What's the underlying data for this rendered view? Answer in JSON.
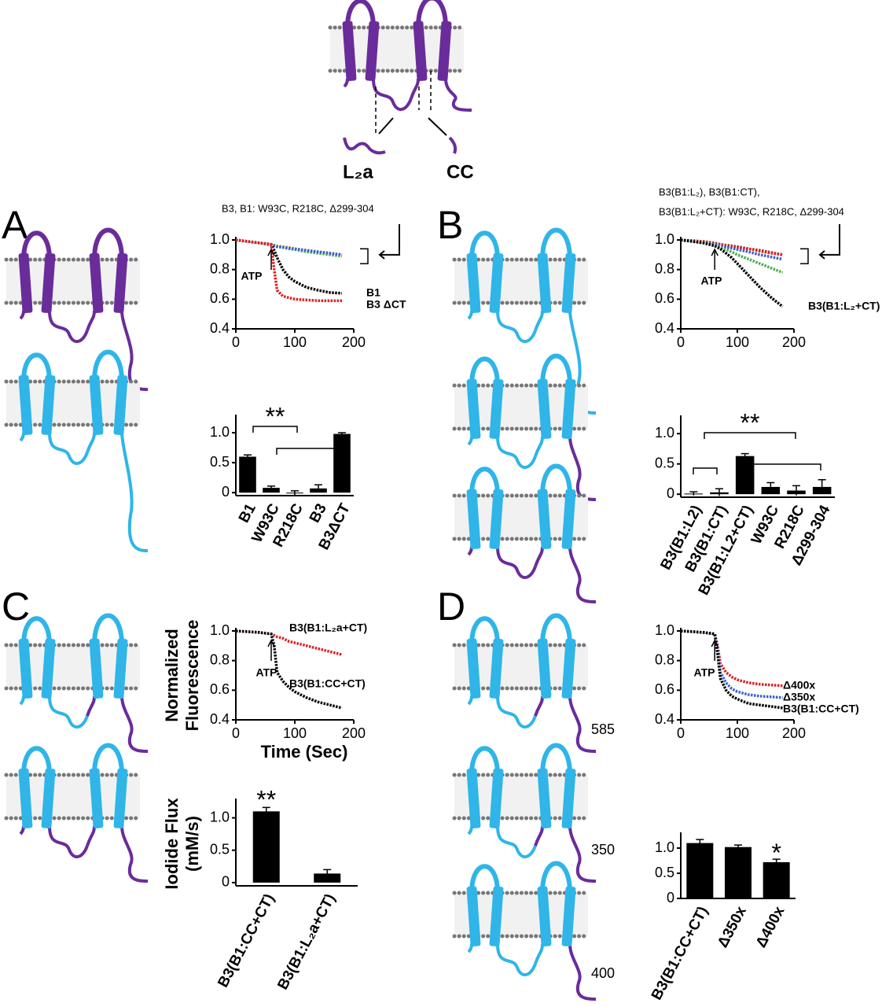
{
  "figure": {
    "panel_letters": [
      "A",
      "B",
      "C",
      "D"
    ],
    "top_labels": [
      "L₂a",
      "CC"
    ],
    "residue_labels": [
      "585",
      "350",
      "400"
    ]
  },
  "chart_data": [
    {
      "type": "line",
      "x": [
        0,
        20,
        40,
        60,
        65,
        70,
        80,
        90,
        100,
        120,
        140,
        160,
        180
      ],
      "series": [
        {
          "color": "#e8a33c",
          "values": [
            1,
            0.99,
            0.98,
            0.97,
            0.965,
            0.96,
            0.955,
            0.95,
            0.94,
            0.93,
            0.92,
            0.91,
            0.9
          ]
        },
        {
          "color": "#4caf50",
          "values": [
            1,
            0.99,
            0.98,
            0.97,
            0.962,
            0.955,
            0.95,
            0.94,
            0.935,
            0.92,
            0.91,
            0.9,
            0.89
          ]
        },
        {
          "color": "#3a5fcd",
          "values": [
            1,
            0.99,
            0.98,
            0.965,
            0.96,
            0.955,
            0.95,
            0.945,
            0.94,
            0.93,
            0.92,
            0.91,
            0.9
          ]
        },
        {
          "name": "B1",
          "color": "#000000",
          "values": [
            1,
            0.99,
            0.98,
            0.97,
            0.93,
            0.88,
            0.8,
            0.75,
            0.72,
            0.68,
            0.66,
            0.645,
            0.64
          ]
        },
        {
          "name": "B3 ΔCT",
          "color": "#e02020",
          "values": [
            1,
            0.99,
            0.98,
            0.97,
            0.8,
            0.66,
            0.62,
            0.61,
            0.6,
            0.595,
            0.59,
            0.59,
            0.59
          ]
        }
      ],
      "xlim": [
        0,
        200
      ],
      "ylim": [
        0.4,
        1.0
      ],
      "xticks": [
        0,
        100,
        200
      ],
      "yticks": [
        0.4,
        0.6,
        0.8,
        {
          "value": 1,
          "label": "1.0"
        }
      ],
      "annotations": [
        "B3, B1: W93C, R218C, Δ299-304",
        "ATP"
      ]
    },
    {
      "type": "bar",
      "categories": [
        "B1",
        "W93C",
        "R218C",
        "B3",
        "B3ΔCT"
      ],
      "values": [
        0.6,
        0.08,
        -0.01,
        0.07,
        0.98
      ],
      "errors": [
        0.03,
        0.03,
        0.04,
        0.06,
        0.02
      ],
      "color": "#000000",
      "ylim": [
        -0.05,
        1.25
      ],
      "yticks": [
        0,
        0.5,
        {
          "value": 1,
          "label": "1.0"
        }
      ],
      "annotations": [
        "**"
      ]
    },
    {
      "type": "line",
      "x": [
        0,
        20,
        40,
        60,
        65,
        70,
        80,
        90,
        100,
        120,
        140,
        160,
        180
      ],
      "series": [
        {
          "color": "#8b3a2a",
          "values": [
            1,
            0.995,
            0.99,
            0.98,
            0.975,
            0.97,
            0.965,
            0.96,
            0.955,
            0.94,
            0.93,
            0.915,
            0.9
          ]
        },
        {
          "color": "#e02020",
          "values": [
            1,
            0.995,
            0.985,
            0.975,
            0.97,
            0.965,
            0.96,
            0.955,
            0.95,
            0.94,
            0.925,
            0.91,
            0.9
          ]
        },
        {
          "color": "#3a5fcd",
          "values": [
            1,
            0.99,
            0.98,
            0.97,
            0.965,
            0.96,
            0.95,
            0.945,
            0.935,
            0.92,
            0.9,
            0.885,
            0.87
          ]
        },
        {
          "color": "#4caf50",
          "values": [
            1,
            0.99,
            0.98,
            0.96,
            0.955,
            0.95,
            0.935,
            0.92,
            0.9,
            0.87,
            0.84,
            0.81,
            0.78
          ]
        },
        {
          "name": "B3(B1:L₂+CT)",
          "color": "#000000",
          "values": [
            1,
            0.99,
            0.98,
            0.96,
            0.95,
            0.94,
            0.91,
            0.88,
            0.84,
            0.76,
            0.68,
            0.61,
            0.55
          ]
        }
      ],
      "xlim": [
        0,
        200
      ],
      "ylim": [
        0.4,
        1.0
      ],
      "xticks": [
        0,
        100,
        200
      ],
      "yticks": [
        0.4,
        0.6,
        0.8,
        {
          "value": 1,
          "label": "1.0"
        }
      ],
      "annotations": [
        "B3(B1:L₂), B3(B1:CT),",
        "B3(B1:L₂+CT): W93C, R218C,  Δ299-304",
        "ATP"
      ]
    },
    {
      "type": "bar",
      "categories": [
        "B3(B1:L2)",
        "B3(B1:CT)",
        "B3(B1:L2+CT)",
        "W93C",
        "R218C",
        "Δ299-304"
      ],
      "values": [
        0.01,
        0.03,
        0.63,
        0.12,
        0.06,
        0.12
      ],
      "errors": [
        0.03,
        0.06,
        0.04,
        0.07,
        0.08,
        0.12
      ],
      "color": "#000000",
      "ylim": [
        -0.05,
        1.25
      ],
      "yticks": [
        0,
        0.5,
        {
          "value": 1,
          "label": "1.0"
        }
      ],
      "annotations": [
        "**"
      ]
    },
    {
      "type": "line",
      "x": [
        0,
        20,
        40,
        60,
        65,
        70,
        80,
        90,
        100,
        120,
        140,
        160,
        180
      ],
      "series": [
        {
          "name": "B3(B1:L₂a+CT)",
          "color": "#e02020",
          "values": [
            1,
            0.995,
            0.99,
            0.98,
            0.97,
            0.96,
            0.95,
            0.93,
            0.92,
            0.9,
            0.88,
            0.86,
            0.84
          ]
        },
        {
          "name": "B3(B1:CC+CT)",
          "color": "#000000",
          "values": [
            1,
            0.995,
            0.99,
            0.98,
            0.9,
            0.72,
            0.66,
            0.62,
            0.59,
            0.55,
            0.52,
            0.5,
            0.48
          ]
        }
      ],
      "xlim": [
        0,
        200
      ],
      "ylim": [
        0.4,
        1.0
      ],
      "xticks": [
        0,
        100,
        200
      ],
      "yticks": [
        0.4,
        0.6,
        0.8,
        {
          "value": 1,
          "label": "1.0"
        }
      ],
      "xlabel": "Time (Sec)",
      "ylabel": [
        "Normalized",
        "Fluorescence"
      ],
      "annotations": [
        "ATP"
      ]
    },
    {
      "type": "bar",
      "categories": [
        "B3(B1:CC+CT)",
        "B3(B1:L₂a+CT)"
      ],
      "values": [
        1.1,
        0.14
      ],
      "errors": [
        0.06,
        0.06
      ],
      "color": "#000000",
      "ylim": [
        -0.05,
        1.25
      ],
      "yticks": [
        0,
        0.5,
        {
          "value": 1,
          "label": "1.0"
        }
      ],
      "ylabel": [
        "Iodide Flux",
        "(mM/s)"
      ],
      "annotations": [
        "**"
      ]
    },
    {
      "type": "line",
      "x": [
        0,
        20,
        40,
        60,
        65,
        70,
        80,
        90,
        100,
        120,
        140,
        160,
        180
      ],
      "series": [
        {
          "name": "Δ400x",
          "color": "#e02020",
          "values": [
            1,
            0.995,
            0.99,
            0.98,
            0.9,
            0.78,
            0.72,
            0.69,
            0.67,
            0.65,
            0.64,
            0.635,
            0.63
          ]
        },
        {
          "name": "Δ350x",
          "color": "#3a5fcd",
          "values": [
            1,
            0.995,
            0.99,
            0.98,
            0.88,
            0.72,
            0.65,
            0.61,
            0.59,
            0.57,
            0.56,
            0.555,
            0.55
          ]
        },
        {
          "name": "B3(B1:CC+CT)",
          "color": "#000000",
          "values": [
            1,
            0.995,
            0.99,
            0.98,
            0.85,
            0.68,
            0.6,
            0.56,
            0.54,
            0.51,
            0.5,
            0.49,
            0.48
          ]
        }
      ],
      "xlim": [
        0,
        200
      ],
      "ylim": [
        0.4,
        1.0
      ],
      "xticks": [
        0,
        100,
        200
      ],
      "yticks": [
        0.4,
        0.6,
        0.8,
        {
          "value": 1,
          "label": "1.0"
        }
      ],
      "annotations": [
        "ATP"
      ]
    },
    {
      "type": "bar",
      "categories": [
        "B3(B1:CC+CT)",
        "Δ350x",
        "Δ400x"
      ],
      "values": [
        1.1,
        1.02,
        0.72
      ],
      "errors": [
        0.07,
        0.04,
        0.06
      ],
      "color": "#000000",
      "ylim": [
        0,
        1.25
      ],
      "yticks": [
        0,
        0.5,
        {
          "value": 1,
          "label": "1.0"
        }
      ],
      "annotations": [
        "*"
      ]
    }
  ]
}
